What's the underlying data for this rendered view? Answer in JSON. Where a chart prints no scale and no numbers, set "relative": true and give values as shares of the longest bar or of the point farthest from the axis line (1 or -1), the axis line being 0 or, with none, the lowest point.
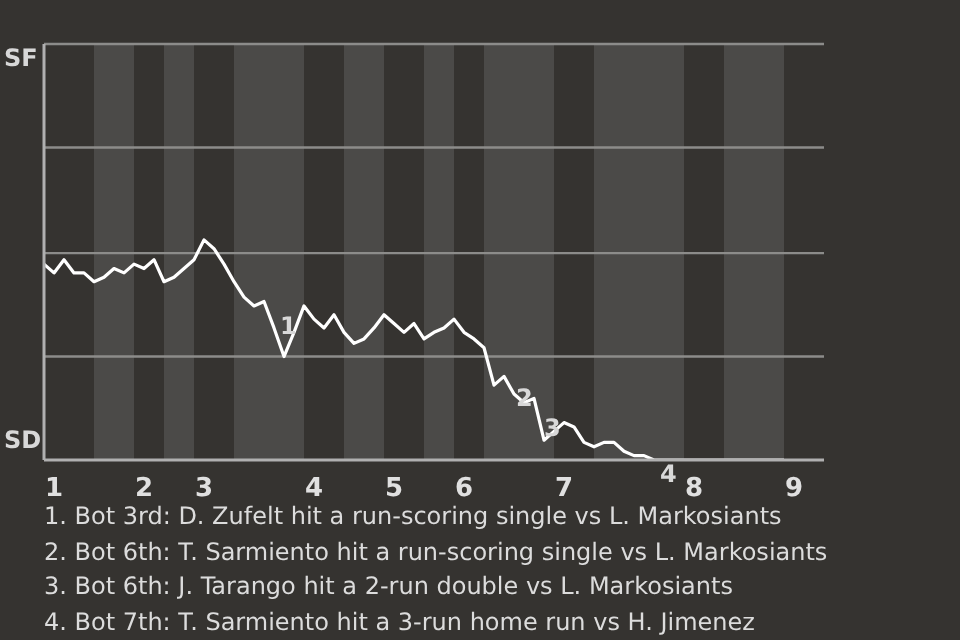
{
  "chart_data": {
    "type": "line",
    "relative": true,
    "categories": [
      null,
      "1",
      null,
      null,
      null,
      null,
      null,
      null,
      null,
      null,
      "2",
      null,
      null,
      null,
      null,
      null,
      "3",
      null,
      null,
      null,
      null,
      null,
      null,
      null,
      null,
      null,
      null,
      "4",
      null,
      null,
      null,
      null,
      null,
      null,
      null,
      "5",
      null,
      null,
      null,
      null,
      null,
      null,
      "6",
      null,
      null,
      null,
      null,
      null,
      null,
      null,
      null,
      null,
      "7",
      null,
      null,
      null,
      null,
      null,
      null,
      null,
      null,
      null,
      null,
      null,
      null,
      "8",
      null,
      null,
      null,
      null,
      null,
      null,
      null,
      null,
      null,
      "9",
      null,
      null,
      null
    ],
    "series": [
      {
        "color": "#ffffff",
        "values": [
          0.89,
          0.85,
          0.91,
          0.85,
          0.85,
          0.81,
          0.83,
          0.87,
          0.85,
          0.89,
          0.87,
          0.91,
          0.81,
          0.83,
          0.87,
          0.91,
          1,
          0.96,
          0.89,
          0.81,
          0.74,
          0.7,
          0.72,
          0.6,
          0.47,
          0.58,
          0.7,
          0.64,
          0.6,
          0.66,
          0.58,
          0.53,
          0.55,
          0.6,
          0.66,
          0.62,
          0.58,
          0.62,
          0.55,
          0.58,
          0.6,
          0.64,
          0.58,
          0.55,
          0.51,
          0.34,
          0.38,
          0.3,
          0.26,
          0.28,
          0.09,
          0.13,
          0.17,
          0.15,
          0.08,
          0.06,
          0.08,
          0.08,
          0.04,
          0.02,
          0.02,
          0,
          0,
          0,
          0,
          0,
          0,
          0,
          0,
          0,
          0,
          0,
          0,
          0,
          0,
          null,
          null,
          null,
          null
        ]
      }
    ],
    "marker": "none",
    "line_style": "solid",
    "ref_lines": [
      {
        "axis": "y",
        "value": 0.47,
        "color": "#8c8c8a"
      },
      {
        "axis": "y",
        "value": 0.94,
        "color": "#8c8c8a"
      },
      {
        "axis": "y",
        "value": 1.42,
        "color": "#8c8c8a"
      },
      {
        "axis": "y",
        "value": 1.89,
        "color": "#8c8c8a"
      }
    ],
    "annotations": [
      "SF",
      "SD",
      "1",
      "2",
      "3",
      "4",
      "1. Bot 3rd: D. Zufelt hit a run-scoring single vs L. Markosiants",
      "2. Bot 6th: T. Sarmiento hit a run-scoring single vs L. Markosiants",
      "3. Bot 6th: J. Tarango hit a 2-run double vs L. Markosiants",
      "4. Bot 7th: T. Sarmiento hit a 3-run home run vs H. Jimenez"
    ]
  }
}
